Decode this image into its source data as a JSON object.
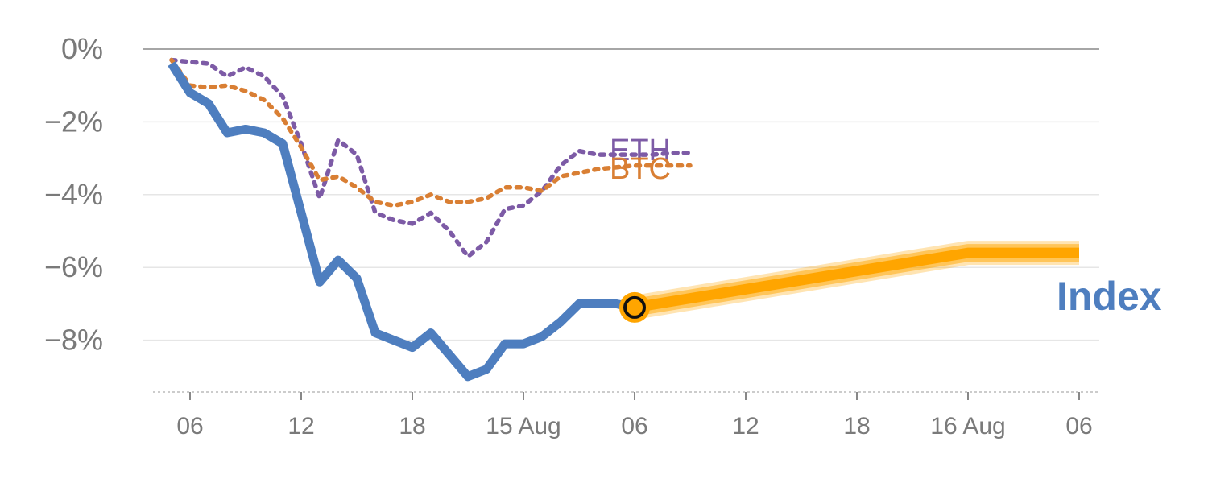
{
  "chart_data": {
    "type": "line",
    "title": "",
    "xlabel": "",
    "ylabel": "",
    "x_unit": "hours",
    "x_range": [
      -1,
      50.5
    ],
    "ylim": [
      -9.4,
      0
    ],
    "y_ticks": [
      0,
      -2,
      -4,
      -6,
      -8
    ],
    "y_tick_labels": [
      "0%",
      "−2%",
      "−4%",
      "−6%",
      "−8%"
    ],
    "x_ticks": [
      0,
      6,
      12,
      18,
      24,
      30,
      36,
      42,
      48
    ],
    "x_tick_labels": [
      "06",
      "12",
      "18",
      "15 Aug",
      "06",
      "12",
      "18",
      "16 Aug",
      "06"
    ],
    "grid": true,
    "series": [
      {
        "name": "ETH",
        "style": "dotted",
        "color": "#7d5ba6",
        "x": [
          -1,
          0,
          1,
          2,
          3,
          4,
          5,
          6,
          7,
          8,
          9,
          10,
          11,
          12,
          13,
          14,
          15,
          16,
          17,
          18,
          19,
          20,
          21,
          22,
          23,
          24,
          25,
          26,
          27
        ],
        "y": [
          -0.3,
          -0.35,
          -0.4,
          -0.75,
          -0.5,
          -0.75,
          -1.3,
          -2.6,
          -4.1,
          -2.5,
          -2.9,
          -4.5,
          -4.7,
          -4.8,
          -4.5,
          -5.0,
          -5.7,
          -5.3,
          -4.4,
          -4.3,
          -3.9,
          -3.2,
          -2.8,
          -2.9,
          -2.9,
          -2.9,
          -2.9,
          -2.85,
          -2.85
        ]
      },
      {
        "name": "BTC",
        "style": "dotted",
        "color": "#d97f34",
        "x": [
          -1,
          0,
          1,
          2,
          3,
          4,
          5,
          6,
          7,
          8,
          9,
          10,
          11,
          12,
          13,
          14,
          15,
          16,
          17,
          18,
          19,
          20,
          21,
          22,
          23,
          24,
          25,
          26,
          27
        ],
        "y": [
          -0.3,
          -1.0,
          -1.05,
          -1.0,
          -1.15,
          -1.4,
          -1.9,
          -2.7,
          -3.6,
          -3.5,
          -3.8,
          -4.2,
          -4.3,
          -4.2,
          -4.0,
          -4.2,
          -4.2,
          -4.1,
          -3.8,
          -3.8,
          -3.9,
          -3.5,
          -3.4,
          -3.3,
          -3.25,
          -3.2,
          -3.2,
          -3.2,
          -3.2
        ]
      },
      {
        "name": "Index",
        "style": "solid",
        "color": "#4e7ebf",
        "x": [
          -1,
          0,
          1,
          2,
          3,
          4,
          5,
          6,
          7,
          8,
          9,
          10,
          11,
          12,
          13,
          14,
          15,
          16,
          17,
          18,
          19,
          20,
          21,
          22,
          23,
          24
        ],
        "y": [
          -0.4,
          -1.2,
          -1.5,
          -2.3,
          -2.2,
          -2.3,
          -2.6,
          -4.5,
          -6.4,
          -5.8,
          -6.3,
          -7.8,
          -8.0,
          -8.2,
          -7.8,
          -8.4,
          -9.0,
          -8.8,
          -8.1,
          -8.1,
          -7.9,
          -7.5,
          -7.0,
          -7.0,
          -7.0,
          -7.1
        ]
      },
      {
        "name": "",
        "style": "forecast",
        "color": "#ffa500",
        "x": [
          24,
          42,
          48
        ],
        "y": [
          -7.1,
          -5.6,
          -5.6
        ]
      }
    ],
    "marker": {
      "x": 24,
      "y": -7.1,
      "fill": "#ffa500"
    },
    "labels": {
      "eth": "ETH",
      "btc": "BTC",
      "index": "Index"
    },
    "colors": {
      "eth": "#7d5ba6",
      "btc": "#d97f34",
      "index": "#4e7ebf",
      "forecast": "#ffa500"
    }
  }
}
